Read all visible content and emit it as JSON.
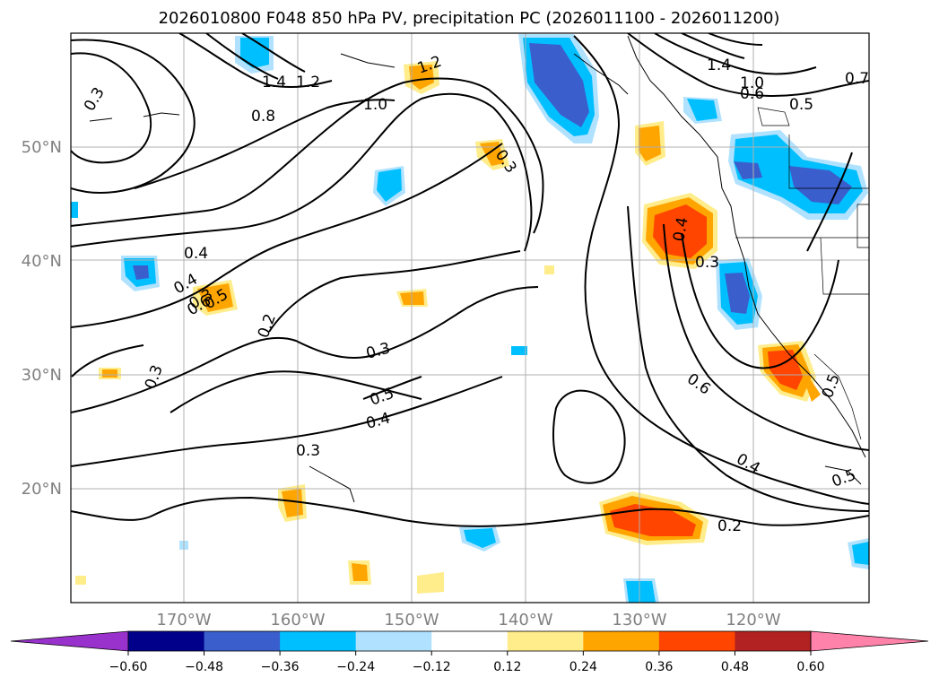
{
  "title": "2026010800 F048 850 hPa PV, precipitation PC (2026011100 - 2026011200)",
  "lat_labels": [
    "50°N",
    "40°N",
    "30°N",
    "20°N"
  ],
  "lon_labels": [
    "170°W",
    "160°W",
    "150°W",
    "140°W",
    "130°W",
    "120°W"
  ],
  "colorbar": {
    "ticks": [
      "−0.60",
      "−0.48",
      "−0.36",
      "−0.24",
      "−0.12",
      "0.12",
      "0.24",
      "0.36",
      "0.48",
      "0.60"
    ],
    "colors": [
      "#9932cc",
      "#00008b",
      "#3a5fcd",
      "#00bfff",
      "#b0e2ff",
      "#ffffff",
      "#ffec8b",
      "#ffa500",
      "#ff4500",
      "#b22222",
      "#ff82ab"
    ]
  },
  "contour_labels": [
    "0.3",
    "1.4",
    "1.2",
    "0.8",
    "1.0",
    "1.2",
    "0.3",
    "1.4",
    "1.0",
    "0.6",
    "0.7",
    "0.5",
    "0.4",
    "0.3",
    "0.4",
    "0.6",
    "0.5",
    "0.2",
    "0.3",
    "0.3",
    "0.5",
    "0.4",
    "0.3",
    "0.4",
    "0.3",
    "0.6",
    "0.4",
    "0.5",
    "0.2",
    "0.5"
  ]
}
